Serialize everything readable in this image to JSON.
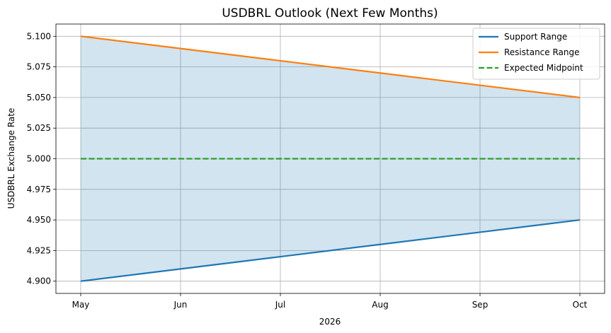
{
  "chart_data": {
    "type": "line",
    "title": "USDBRL Outlook (Next Few Months)",
    "xlabel": "2026",
    "ylabel": "USDBRL Exchange Rate",
    "categories": [
      "May",
      "Jun",
      "Jul",
      "Aug",
      "Sep",
      "Oct"
    ],
    "ylim": [
      4.89,
      5.11
    ],
    "yticks": [
      4.9,
      4.925,
      4.95,
      4.975,
      5.0,
      5.025,
      5.05,
      5.075,
      5.1
    ],
    "ytick_labels": [
      "4.900",
      "4.925",
      "4.950",
      "4.975",
      "5.000",
      "5.025",
      "5.050",
      "5.075",
      "5.100"
    ],
    "grid": true,
    "legend_position": "top-right",
    "series": [
      {
        "name": "Support Range",
        "values": [
          4.9,
          4.91,
          4.92,
          4.93,
          4.94,
          4.95
        ],
        "color": "#1f77b4",
        "style": "solid"
      },
      {
        "name": "Resistance Range",
        "values": [
          5.1,
          5.09,
          5.08,
          5.07,
          5.06,
          5.05
        ],
        "color": "#ff7f0e",
        "style": "solid"
      },
      {
        "name": "Expected Midpoint",
        "values": [
          5.0,
          5.0,
          5.0,
          5.0,
          5.0,
          5.0
        ],
        "color": "#2ca02c",
        "style": "dashed"
      }
    ],
    "fill_between": {
      "lower": "Support Range",
      "upper": "Resistance Range",
      "color": "#1f77b4",
      "opacity": 0.2
    }
  }
}
